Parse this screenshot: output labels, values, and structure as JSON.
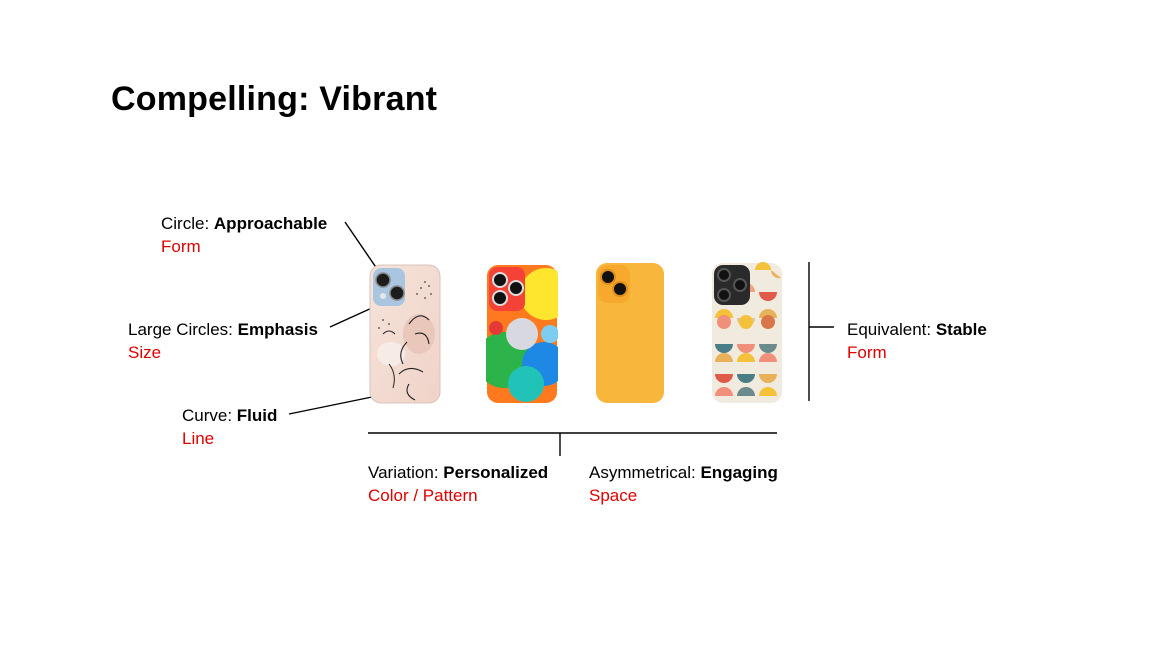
{
  "slide": {
    "title": "Compelling: Vibrant"
  },
  "annotations": {
    "circle": {
      "key": "Circle: ",
      "value": "Approachable",
      "category": "Form"
    },
    "large_circles": {
      "key": "Large Circles: ",
      "value": "Emphasis",
      "category": "Size"
    },
    "curve": {
      "key": "Curve: ",
      "value": "Fluid",
      "category": "Line"
    },
    "variation": {
      "key": "Variation: ",
      "value": "Personalized",
      "category": "Color / Pattern"
    },
    "asymmetrical": {
      "key": "Asymmetrical: ",
      "value": "Engaging",
      "category": "Space"
    },
    "equivalent": {
      "key": "Equivalent: ",
      "value": "Stable",
      "category": "Form"
    }
  },
  "colors": {
    "category_text": "#e00000",
    "case_floral": "#f3ddd5",
    "case_abstract": "#ff7a1f",
    "case_solid": "#f9b63c",
    "case_geometric": "#f1ebdf"
  },
  "phones": [
    {
      "name": "floral-case",
      "icon": "phone-case-floral"
    },
    {
      "name": "abstract-case",
      "icon": "phone-case-abstract"
    },
    {
      "name": "solid-yellow-case",
      "icon": "phone-case-solid"
    },
    {
      "name": "geometric-case",
      "icon": "phone-case-geometric"
    }
  ]
}
